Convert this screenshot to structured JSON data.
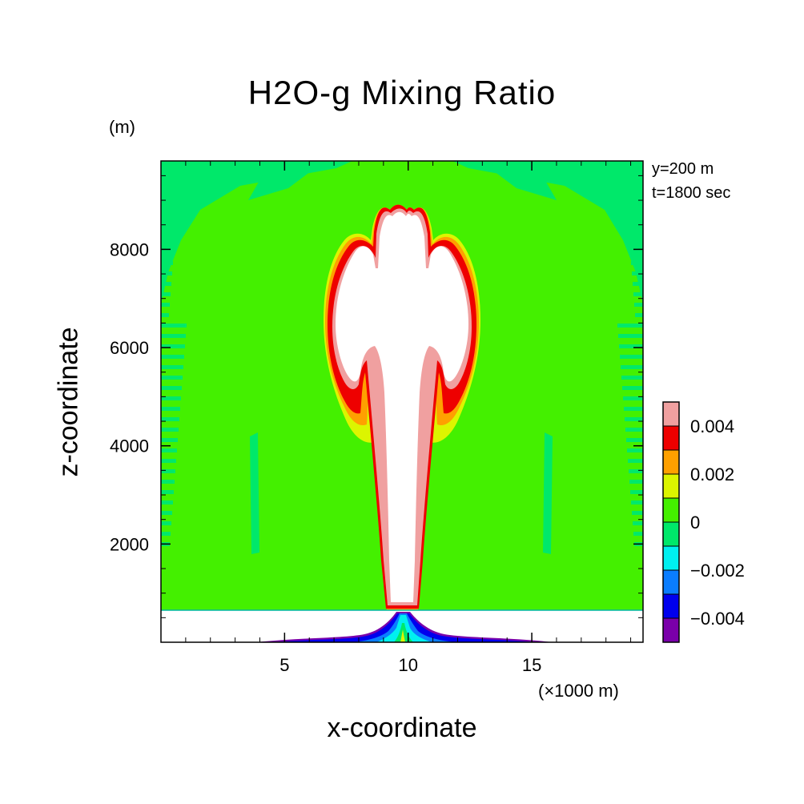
{
  "chart_data": {
    "type": "heatmap",
    "title": "H2O-g Mixing Ratio",
    "xlabel": "x-coordinate",
    "ylabel": "z-coordinate",
    "x_unit": "(×1000 m)",
    "y_unit": "(m)",
    "annotations": [
      "y=200 m",
      "t=1800 sec"
    ],
    "xlim": [
      0,
      19.5
    ],
    "ylim": [
      0,
      9800
    ],
    "x_ticks": [
      5,
      10,
      15
    ],
    "y_ticks": [
      2000,
      4000,
      6000,
      8000
    ],
    "x_tick_labels": [
      "5",
      "10",
      "15"
    ],
    "y_tick_labels": [
      "2000",
      "4000",
      "6000",
      "8000"
    ],
    "colorbar": {
      "levels": [
        -0.005,
        -0.004,
        -0.003,
        -0.002,
        -0.001,
        0,
        0.001,
        0.002,
        0.003,
        0.004,
        0.005
      ],
      "colors": [
        "#7a00aa",
        "#0000ee",
        "#0a7dff",
        "#00f0f0",
        "#00e86a",
        "#44f000",
        "#dcf500",
        "#ffa000",
        "#ee0000",
        "#f0a0a0"
      ],
      "tick_values": [
        -0.004,
        -0.002,
        0,
        0.002,
        0.004
      ],
      "tick_labels": [
        "−0.004",
        "−0.002",
        "0",
        "0.002",
        "0.004"
      ]
    },
    "regions": [
      {
        "name": "background",
        "value": 0.0005
      },
      {
        "name": "plume-core (above range)",
        "value": 0.006
      },
      {
        "name": "surface-layer (masked)",
        "z_max": 700
      },
      {
        "name": "ground-plume negative values",
        "value": -0.004
      }
    ],
    "grid": false
  }
}
